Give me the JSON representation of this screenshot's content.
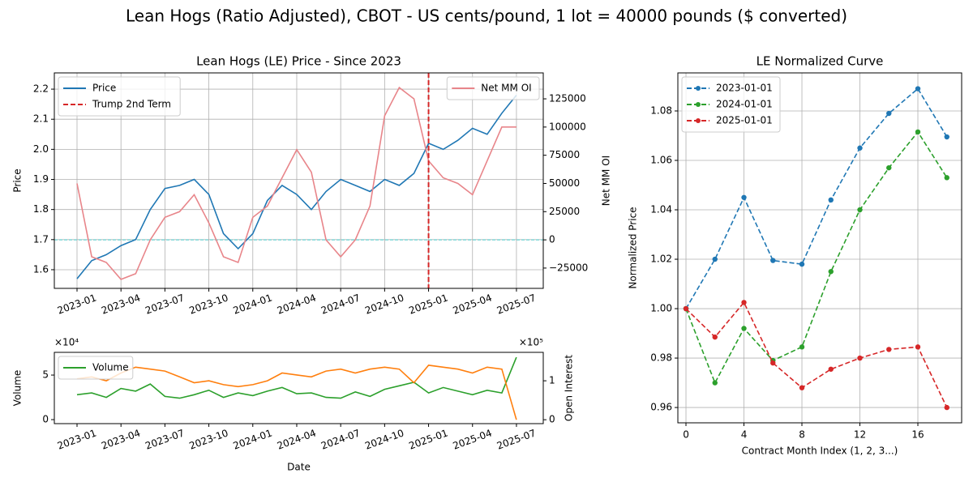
{
  "title": "Lean Hogs (Ratio Adjusted), CBOT - US cents/pound, 1 lot = 40000 pounds ($ converted)",
  "chart_data": [
    {
      "type": "line",
      "title": "Lean Hogs (LE) Price - Since 2023",
      "ylabel": "Price",
      "y2label": "Net MM OI",
      "grid": true,
      "legend_loc": "upper left",
      "legend2_loc": "upper right",
      "x": [
        "2023-01",
        "2023-02",
        "2023-03",
        "2023-04",
        "2023-05",
        "2023-06",
        "2023-07",
        "2023-08",
        "2023-09",
        "2023-10",
        "2023-11",
        "2023-12",
        "2024-01",
        "2024-02",
        "2024-03",
        "2024-04",
        "2024-05",
        "2024-06",
        "2024-07",
        "2024-08",
        "2024-09",
        "2024-10",
        "2024-11",
        "2024-12",
        "2025-01",
        "2025-02",
        "2025-03",
        "2025-04",
        "2025-05",
        "2025-06",
        "2025-07"
      ],
      "xticks": [
        "2023-01",
        "2023-04",
        "2023-07",
        "2023-10",
        "2024-01",
        "2024-04",
        "2024-07",
        "2024-10",
        "2025-01",
        "2025-04",
        "2025-07"
      ],
      "ylim": [
        1.538,
        2.254
      ],
      "yticks": [
        1.6,
        1.7,
        1.8,
        1.9,
        {
          "value": 2,
          "label": "2.0"
        },
        2.1,
        2.2
      ],
      "y2lim": [
        -43000,
        148000
      ],
      "y2ticks": [
        {
          "value": -25000,
          "label": "−25000"
        },
        0,
        25000,
        50000,
        75000,
        100000,
        125000
      ],
      "series": [
        {
          "name": "Price",
          "color": "#1f77b4",
          "values": [
            1.57,
            1.63,
            1.65,
            1.68,
            1.7,
            1.8,
            1.87,
            1.88,
            1.9,
            1.85,
            1.72,
            1.67,
            1.72,
            1.83,
            1.88,
            1.85,
            1.8,
            1.86,
            1.9,
            1.88,
            1.86,
            1.9,
            1.88,
            1.92,
            2.02,
            2.0,
            2.03,
            2.07,
            2.05,
            2.12,
            2.18
          ]
        },
        {
          "name": "Net MM OI",
          "color": "#e8858a",
          "axis": "y2",
          "values": [
            50000,
            -15000,
            -20000,
            -35000,
            -30000,
            0,
            20000,
            25000,
            40000,
            15000,
            -15000,
            -20000,
            20000,
            30000,
            55000,
            80000,
            60000,
            0,
            -15000,
            0,
            30000,
            110000,
            135000,
            125000,
            70000,
            55000,
            50000,
            40000,
            70000,
            100000,
            100000
          ]
        }
      ],
      "vline": {
        "x": "2025-01",
        "label": "Trump 2nd Term",
        "color": "#d62728"
      },
      "hline": {
        "value": 0,
        "axis": "y2",
        "color": "#80d8d8"
      }
    },
    {
      "type": "line",
      "ylabel": "Volume",
      "y2label": "Open Interest",
      "xlabel": "Date",
      "grid": false,
      "legend_loc": "upper left",
      "y_offset_label": "×10⁴",
      "y2_offset_label": "×10⁵",
      "x": [
        "2023-01",
        "2023-02",
        "2023-03",
        "2023-04",
        "2023-05",
        "2023-06",
        "2023-07",
        "2023-08",
        "2023-09",
        "2023-10",
        "2023-11",
        "2023-12",
        "2024-01",
        "2024-02",
        "2024-03",
        "2024-04",
        "2024-05",
        "2024-06",
        "2024-07",
        "2024-08",
        "2024-09",
        "2024-10",
        "2024-11",
        "2024-12",
        "2025-01",
        "2025-02",
        "2025-03",
        "2025-04",
        "2025-05",
        "2025-06",
        "2025-07"
      ],
      "xticks": [
        "2023-01",
        "2023-04",
        "2023-07",
        "2023-10",
        "2024-01",
        "2024-04",
        "2024-07",
        "2024-10",
        "2025-01",
        "2025-04",
        "2025-07"
      ],
      "ylim": [
        -0.45,
        7.55
      ],
      "yticks": [
        0,
        5
      ],
      "y2lim": [
        -0.1,
        1.73
      ],
      "y2ticks": [
        0,
        1
      ],
      "series": [
        {
          "name": "Volume",
          "color": "#2ca02c",
          "values": [
            2.8,
            3.0,
            2.5,
            3.5,
            3.2,
            4.0,
            2.6,
            2.4,
            2.8,
            3.3,
            2.5,
            3.0,
            2.7,
            3.2,
            3.6,
            2.9,
            3.0,
            2.5,
            2.4,
            3.1,
            2.6,
            3.4,
            3.8,
            4.2,
            3.0,
            3.6,
            3.2,
            2.8,
            3.3,
            3.0,
            7.0
          ]
        },
        {
          "color": "#ff7f0e",
          "axis": "y2",
          "values": [
            1.05,
            1.1,
            1.0,
            1.2,
            1.35,
            1.3,
            1.25,
            1.1,
            0.95,
            1.0,
            0.9,
            0.85,
            0.9,
            1.0,
            1.2,
            1.15,
            1.1,
            1.25,
            1.3,
            1.2,
            1.3,
            1.35,
            1.3,
            0.95,
            1.4,
            1.35,
            1.3,
            1.2,
            1.35,
            1.3,
            0
          ]
        }
      ]
    },
    {
      "type": "line",
      "title": "LE Normalized Curve",
      "xlabel": "Contract Month Index (1, 2, 3...)",
      "ylabel": "Normalized Price",
      "grid": true,
      "legend_loc": "upper left",
      "markers": true,
      "linestyle": "dashed",
      "x": [
        0,
        2,
        4,
        6,
        8,
        10,
        12,
        14,
        16,
        18
      ],
      "xlim": [
        -0.56,
        19.02
      ],
      "xticks": [
        0,
        4,
        8,
        12,
        16
      ],
      "ylim": [
        0.9538,
        1.0954
      ],
      "yticks": [
        0.96,
        0.98,
        {
          "value": 1,
          "label": "1.00"
        },
        1.02,
        1.04,
        1.06,
        1.08
      ],
      "series": [
        {
          "name": "2023-01-01",
          "color": "#1f77b4",
          "values": [
            1.0,
            1.02,
            1.045,
            1.0195,
            1.018,
            1.044,
            1.065,
            1.079,
            1.089,
            1.0695
          ]
        },
        {
          "name": "2024-01-01",
          "color": "#2ca02c",
          "values": [
            1.0,
            0.97,
            0.992,
            0.979,
            0.9845,
            1.015,
            1.04,
            1.057,
            1.0715,
            1.053
          ]
        },
        {
          "name": "2025-01-01",
          "color": "#d62728",
          "values": [
            1.0,
            0.9885,
            1.0025,
            0.978,
            0.968,
            0.9755,
            0.98,
            0.9835,
            0.9845,
            0.96
          ]
        }
      ]
    }
  ]
}
